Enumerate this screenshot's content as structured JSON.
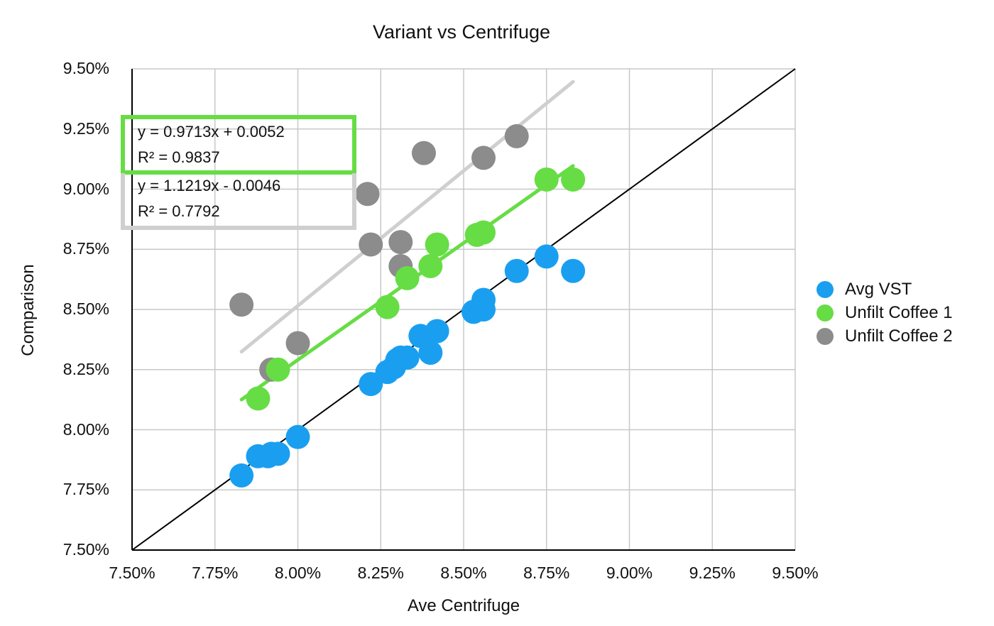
{
  "chart_data": {
    "type": "scatter",
    "title": "Variant vs Centrifuge",
    "xlabel": "Ave Centrifuge",
    "ylabel": "Comparison",
    "xlim": [
      0.075,
      0.095
    ],
    "ylim": [
      0.075,
      0.095
    ],
    "x_ticks": [
      "7.50%",
      "7.75%",
      "8.00%",
      "8.25%",
      "8.50%",
      "8.75%",
      "9.00%",
      "9.25%",
      "9.50%"
    ],
    "y_ticks": [
      "7.50%",
      "7.75%",
      "8.00%",
      "8.25%",
      "8.50%",
      "8.75%",
      "9.00%",
      "9.25%",
      "9.50%"
    ],
    "grid": true,
    "legend_position": "right",
    "reference_line": {
      "slope": 1,
      "intercept": 0,
      "color": "#000000"
    },
    "series": [
      {
        "name": "Avg VST",
        "color": "#1a9ff0",
        "points": [
          [
            0.0783,
            0.0781
          ],
          [
            0.0788,
            0.0789
          ],
          [
            0.0791,
            0.0789
          ],
          [
            0.0792,
            0.079
          ],
          [
            0.0794,
            0.079
          ],
          [
            0.08,
            0.0797
          ],
          [
            0.0822,
            0.0819
          ],
          [
            0.0827,
            0.0824
          ],
          [
            0.0829,
            0.0826
          ],
          [
            0.083,
            0.0829
          ],
          [
            0.0831,
            0.083
          ],
          [
            0.0833,
            0.083
          ],
          [
            0.0837,
            0.0839
          ],
          [
            0.084,
            0.0832
          ],
          [
            0.0842,
            0.0841
          ],
          [
            0.0853,
            0.0849
          ],
          [
            0.0856,
            0.0854
          ],
          [
            0.0856,
            0.085
          ],
          [
            0.0866,
            0.0866
          ],
          [
            0.0875,
            0.0872
          ],
          [
            0.0883,
            0.0866
          ]
        ]
      },
      {
        "name": "Unfilt Coffee 1",
        "color": "#66dd44",
        "points": [
          [
            0.0788,
            0.0813
          ],
          [
            0.0794,
            0.0825
          ],
          [
            0.0827,
            0.0851
          ],
          [
            0.0833,
            0.0863
          ],
          [
            0.084,
            0.0868
          ],
          [
            0.0842,
            0.0877
          ],
          [
            0.0854,
            0.0881
          ],
          [
            0.0856,
            0.0882
          ],
          [
            0.0875,
            0.0904
          ],
          [
            0.0883,
            0.0904
          ]
        ],
        "trendline": {
          "equation": "y = 0.9713x + 0.0052",
          "r2": "R² = 0.9837",
          "slope": 0.9713,
          "intercept": 0.0052,
          "x_range": [
            0.0783,
            0.0883
          ]
        }
      },
      {
        "name": "Unfilt Coffee 2",
        "color": "#8c8c8c",
        "points": [
          [
            0.0783,
            0.0852
          ],
          [
            0.0792,
            0.0825
          ],
          [
            0.08,
            0.0836
          ],
          [
            0.0821,
            0.0898
          ],
          [
            0.0822,
            0.0877
          ],
          [
            0.0831,
            0.0868
          ],
          [
            0.0831,
            0.0878
          ],
          [
            0.0838,
            0.0915
          ],
          [
            0.0856,
            0.0913
          ],
          [
            0.0866,
            0.0922
          ]
        ],
        "trendline": {
          "equation": "y = 1.1219x - 0.0046",
          "r2": "R² = 0.7792",
          "slope": 1.1219,
          "intercept": -0.0046,
          "x_range": [
            0.0783,
            0.0883
          ]
        }
      }
    ]
  }
}
